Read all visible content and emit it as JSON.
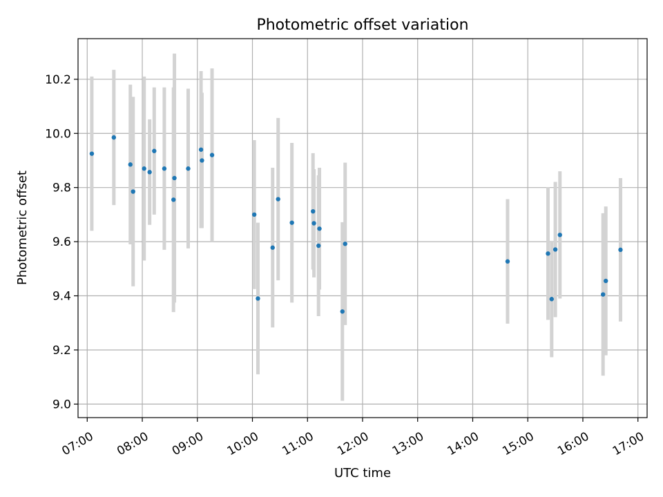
{
  "chart_data": {
    "type": "scatter",
    "title": "Photometric offset variation",
    "xlabel": "UTC time",
    "ylabel": "Photometric offset",
    "x_unit": "time of day (UTC)",
    "xlim": [
      "06:50",
      "17:10"
    ],
    "ylim": [
      8.95,
      10.35
    ],
    "x_ticks": [
      "07:00",
      "08:00",
      "09:00",
      "10:00",
      "11:00",
      "12:00",
      "13:00",
      "14:00",
      "15:00",
      "16:00",
      "17:00"
    ],
    "y_ticks": [
      9.0,
      9.2,
      9.4,
      9.6,
      9.8,
      10.0,
      10.2
    ],
    "y_tick_labels": [
      "9.0",
      "9.2",
      "9.4",
      "9.6",
      "9.8",
      "10.0",
      "10.2"
    ],
    "grid": true,
    "point_color": "#1f77b4",
    "errorbar_color": "#d3d3d3",
    "series": [
      {
        "points": [
          {
            "x": "07:05",
            "y": 9.925,
            "err": 0.285
          },
          {
            "x": "07:29",
            "y": 9.985,
            "err": 0.25
          },
          {
            "x": "07:47",
            "y": 9.885,
            "err": 0.295
          },
          {
            "x": "07:50",
            "y": 9.785,
            "err": 0.35
          },
          {
            "x": "08:02",
            "y": 9.87,
            "err": 0.34
          },
          {
            "x": "08:08",
            "y": 9.857,
            "err": 0.195
          },
          {
            "x": "08:13",
            "y": 9.935,
            "err": 0.235
          },
          {
            "x": "08:24",
            "y": 9.87,
            "err": 0.3
          },
          {
            "x": "08:34",
            "y": 9.755,
            "err": 0.415
          },
          {
            "x": "08:35",
            "y": 9.835,
            "err": 0.46
          },
          {
            "x": "08:50",
            "y": 9.87,
            "err": 0.295
          },
          {
            "x": "09:04",
            "y": 9.94,
            "err": 0.29
          },
          {
            "x": "09:05",
            "y": 9.9,
            "err": 0.25
          },
          {
            "x": "09:16",
            "y": 9.92,
            "err": 0.32
          },
          {
            "x": "10:02",
            "y": 9.7,
            "err": 0.275
          },
          {
            "x": "10:06",
            "y": 9.39,
            "err": 0.28
          },
          {
            "x": "10:22",
            "y": 9.578,
            "err": 0.295
          },
          {
            "x": "10:28",
            "y": 9.757,
            "err": 0.3
          },
          {
            "x": "10:43",
            "y": 9.67,
            "err": 0.295
          },
          {
            "x": "11:06",
            "y": 9.712,
            "err": 0.215
          },
          {
            "x": "11:07",
            "y": 9.668,
            "err": 0.2
          },
          {
            "x": "11:12",
            "y": 9.585,
            "err": 0.26
          },
          {
            "x": "11:13",
            "y": 9.648,
            "err": 0.225
          },
          {
            "x": "11:38",
            "y": 9.342,
            "err": 0.33
          },
          {
            "x": "11:41",
            "y": 9.592,
            "err": 0.3
          },
          {
            "x": "14:38",
            "y": 9.527,
            "err": 0.23
          },
          {
            "x": "15:22",
            "y": 9.556,
            "err": 0.245
          },
          {
            "x": "15:26",
            "y": 9.388,
            "err": 0.215
          },
          {
            "x": "15:30",
            "y": 9.571,
            "err": 0.25
          },
          {
            "x": "15:35",
            "y": 9.625,
            "err": 0.235
          },
          {
            "x": "16:22",
            "y": 9.405,
            "err": 0.3
          },
          {
            "x": "16:25",
            "y": 9.455,
            "err": 0.275
          },
          {
            "x": "16:41",
            "y": 9.57,
            "err": 0.265
          }
        ]
      }
    ]
  }
}
